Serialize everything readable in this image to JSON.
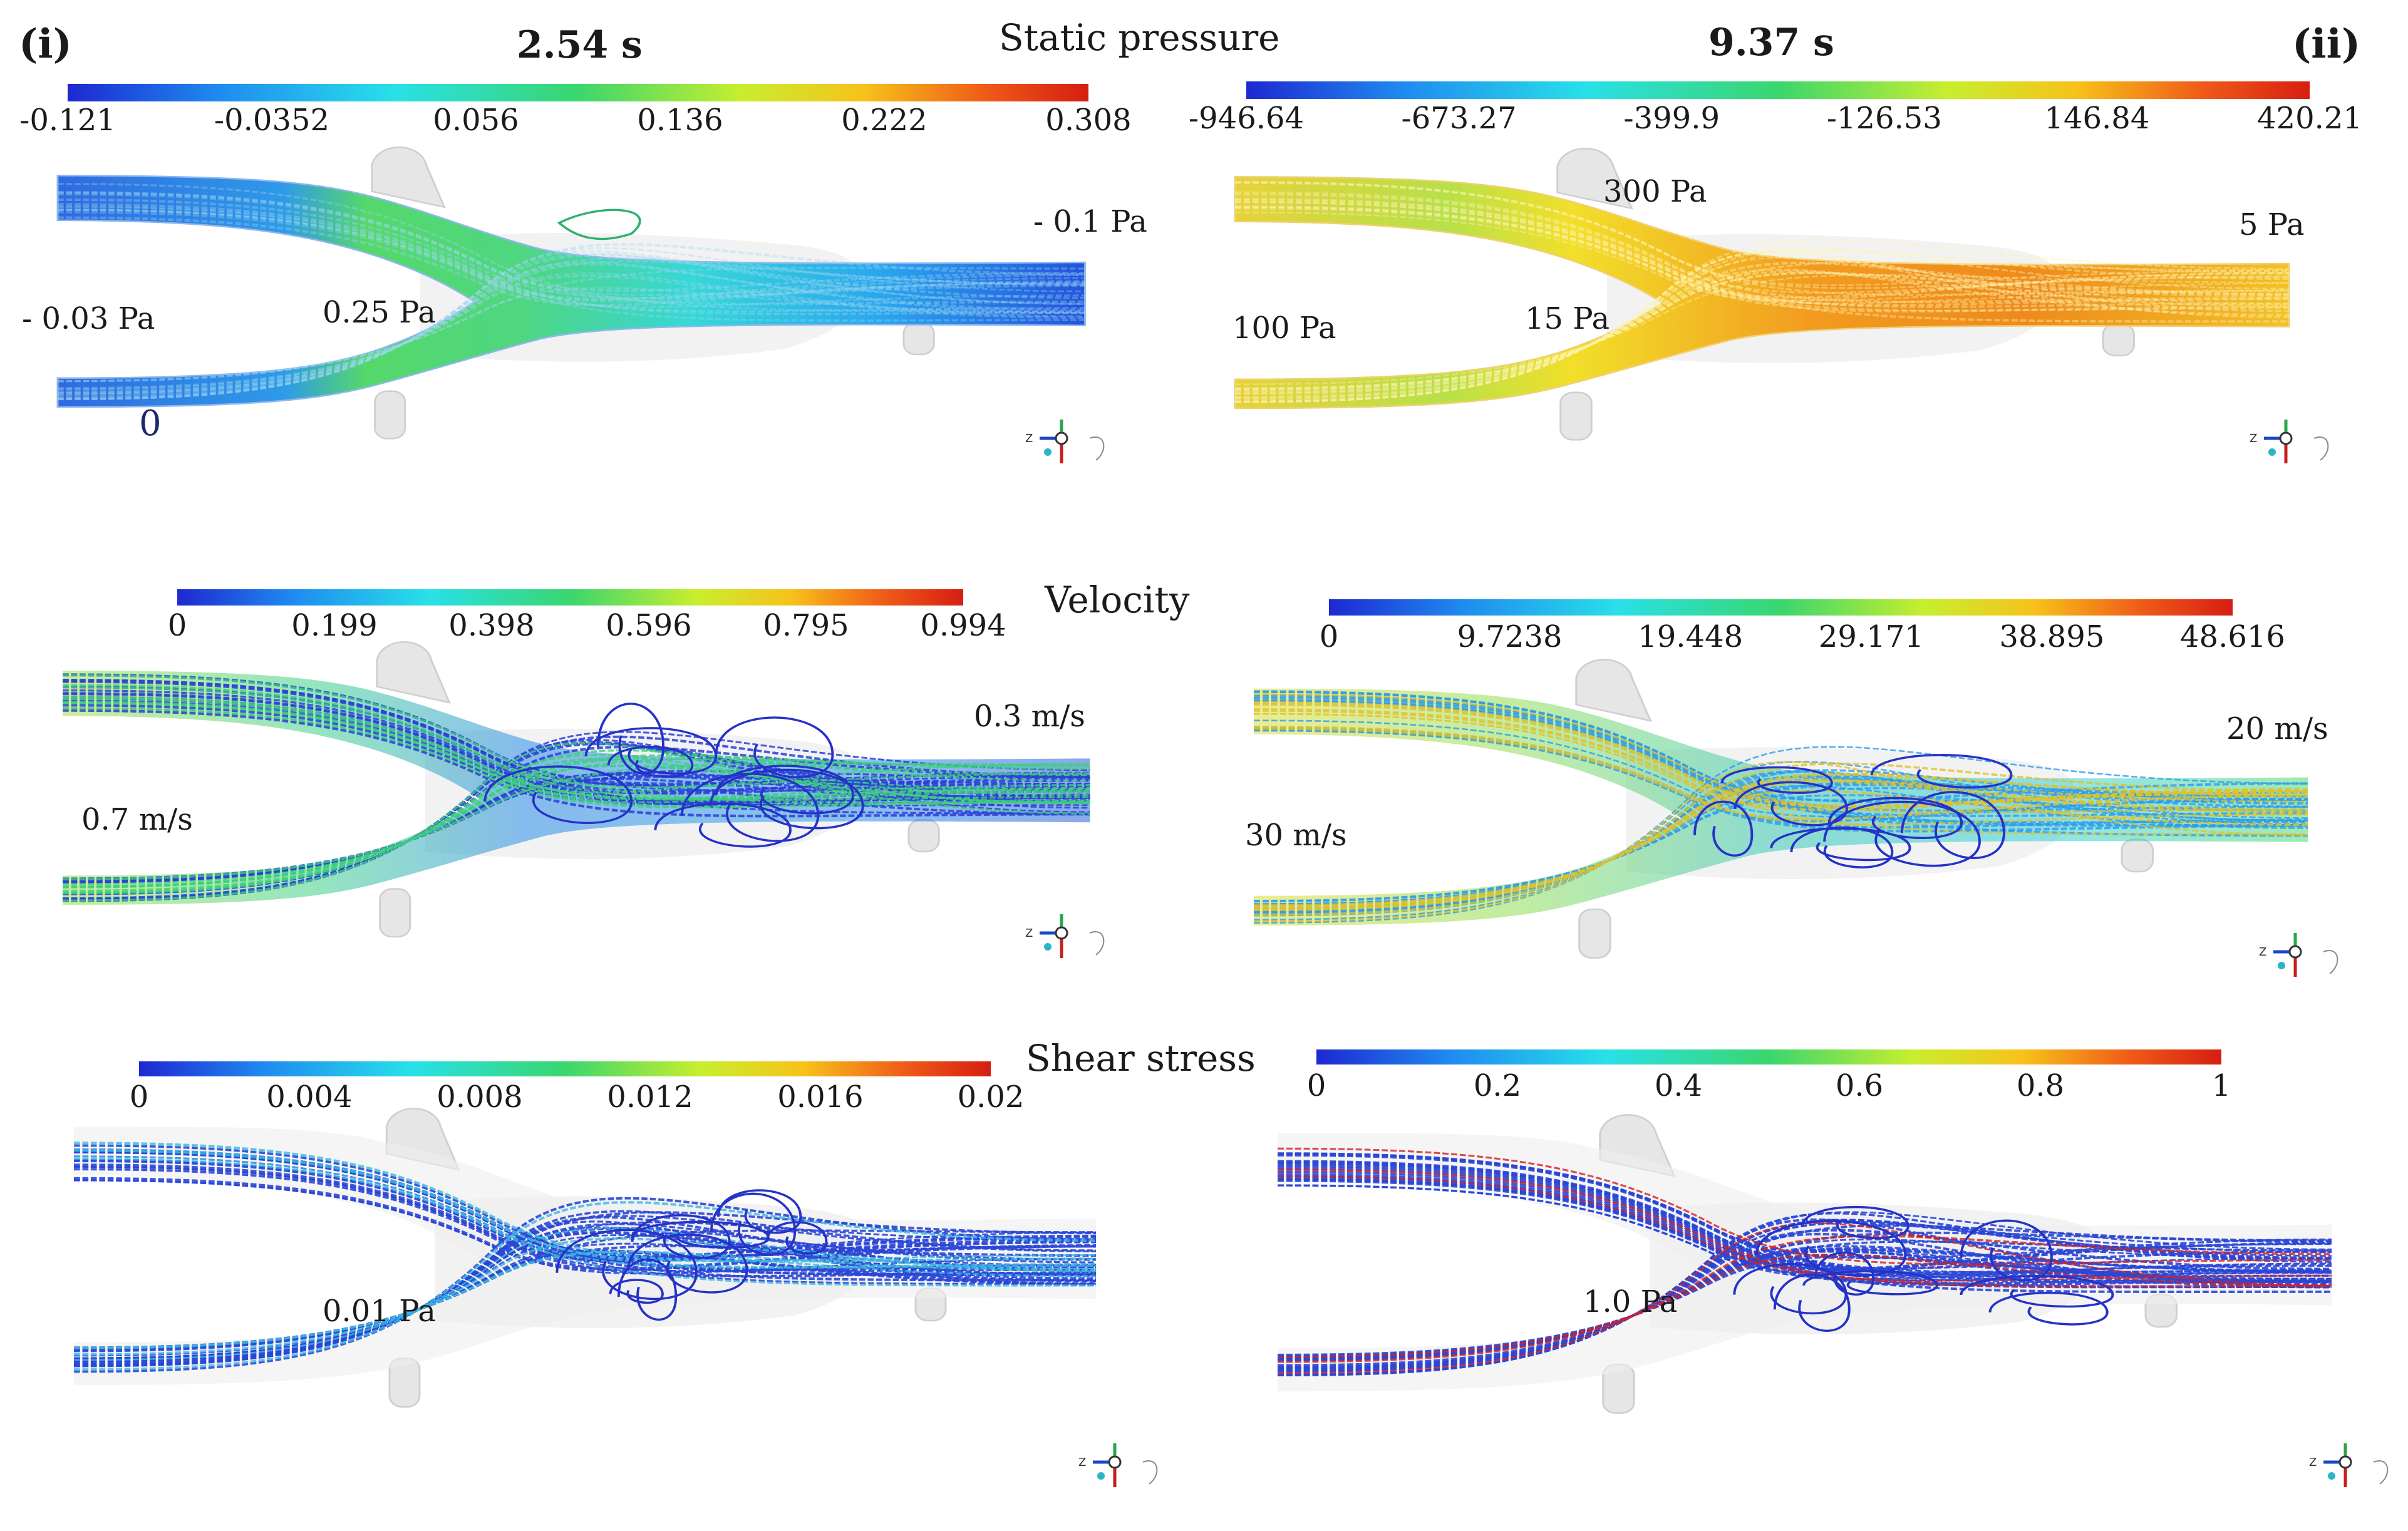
{
  "header": {
    "panel_left": "(i)",
    "panel_right": "(ii)",
    "time_left": "2.54 s",
    "time_right": "9.37 s"
  },
  "palette": [
    "#1e28d2",
    "#1f8cf0",
    "#28e0e8",
    "#3ad66e",
    "#c8ee2e",
    "#f7c21a",
    "#ef5a18",
    "#d61e12"
  ],
  "rows": [
    {
      "title": "Static pressure",
      "left": {
        "ticks": [
          "-0.121",
          "-0.0352",
          "0.056",
          "0.136",
          "0.222",
          "0.308"
        ],
        "annotations": [
          "- 0.1 Pa",
          "- 0.03 Pa",
          "0.25 Pa",
          "0"
        ]
      },
      "right": {
        "ticks": [
          "-946.64",
          "-673.27",
          "-399.9",
          "-126.53",
          "146.84",
          "420.21"
        ],
        "annotations": [
          "300 Pa",
          "5 Pa",
          "100 Pa",
          "15 Pa"
        ]
      }
    },
    {
      "title": "Velocity",
      "left": {
        "ticks": [
          "0",
          "0.199",
          "0.398",
          "0.596",
          "0.795",
          "0.994"
        ],
        "annotations": [
          "0.3 m/s",
          "0.7 m/s"
        ]
      },
      "right": {
        "ticks": [
          "0",
          "9.7238",
          "19.448",
          "29.171",
          "38.895",
          "48.616"
        ],
        "annotations": [
          "20 m/s",
          "30 m/s"
        ]
      }
    },
    {
      "title": "Shear stress",
      "left": {
        "ticks": [
          "0",
          "0.004",
          "0.008",
          "0.012",
          "0.016",
          "0.02"
        ],
        "annotations": [
          "0.01 Pa"
        ]
      },
      "right": {
        "ticks": [
          "0",
          "0.2",
          "0.4",
          "0.6",
          "0.8",
          "1"
        ],
        "annotations": [
          "1.0 Pa"
        ]
      }
    }
  ]
}
